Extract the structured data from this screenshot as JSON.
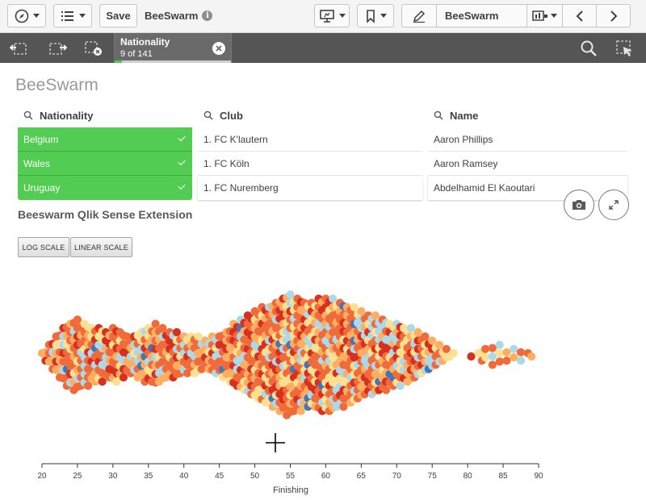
{
  "toolbar": {
    "save_label": "Save",
    "app_title": "BeeSwarm",
    "sheet_name": "BeeSwarm",
    "icons": [
      "compass-icon",
      "list-icon",
      "info-icon",
      "presentation-icon",
      "bookmark-icon",
      "pencil-icon",
      "sheet-list-icon",
      "chevron-left-icon",
      "chevron-right-icon"
    ]
  },
  "selections": {
    "field": "Nationality",
    "count_text": "9 of 141",
    "selected_fraction": 0.064,
    "icons": [
      "selection-back-icon",
      "selection-forward-icon",
      "clear-selections-icon",
      "search-icon",
      "selection-tool-icon"
    ]
  },
  "sheet": {
    "title": "BeeSwarm",
    "filters": [
      {
        "label": "Nationality",
        "items": [
          {
            "text": "Belgium",
            "selected": true
          },
          {
            "text": "Wales",
            "selected": true
          },
          {
            "text": "Uruguay",
            "selected": true
          }
        ]
      },
      {
        "label": "Club",
        "items": [
          {
            "text": "1. FC K'lautern",
            "selected": false
          },
          {
            "text": "1. FC Köln",
            "selected": false
          },
          {
            "text": "1. FC Nuremberg",
            "selected": false
          }
        ]
      },
      {
        "label": "Name",
        "items": [
          {
            "text": "Aaron Phillips",
            "selected": false
          },
          {
            "text": "Aaron Ramsey",
            "selected": false
          },
          {
            "text": "Abdelhamid El Kaoutari",
            "selected": false
          }
        ]
      }
    ],
    "chart_title": "Beeswarm Qlik Sense Extension",
    "log_scale_label": "LOG SCALE",
    "linear_scale_label": "LINEAR SCALE"
  },
  "colors": {
    "selected_green": "#52cc52",
    "toolbar_bg": "#f4f4f4",
    "selbar_bg": "#555555",
    "palette": [
      "#d7301f",
      "#f06a3a",
      "#fdae61",
      "#fee090",
      "#abd9e9",
      "#4575b4"
    ]
  },
  "chart_data": {
    "type": "scatter",
    "xlabel": "Finishing",
    "xlim": [
      20,
      90
    ],
    "ticks": [
      20,
      25,
      30,
      35,
      40,
      45,
      50,
      55,
      60,
      65,
      70,
      75,
      80,
      85,
      90
    ],
    "columns": [
      {
        "x": 20.0,
        "n": 1
      },
      {
        "x": 20.5,
        "n": 2
      },
      {
        "x": 21.0,
        "n": 3
      },
      {
        "x": 21.5,
        "n": 4
      },
      {
        "x": 22.0,
        "n": 5
      },
      {
        "x": 22.5,
        "n": 6
      },
      {
        "x": 23.0,
        "n": 7
      },
      {
        "x": 23.5,
        "n": 8
      },
      {
        "x": 24.0,
        "n": 8
      },
      {
        "x": 24.5,
        "n": 9
      },
      {
        "x": 25.0,
        "n": 9
      },
      {
        "x": 25.5,
        "n": 8
      },
      {
        "x": 26.0,
        "n": 8
      },
      {
        "x": 26.5,
        "n": 8
      },
      {
        "x": 27.0,
        "n": 7
      },
      {
        "x": 27.5,
        "n": 7
      },
      {
        "x": 28.0,
        "n": 7
      },
      {
        "x": 28.5,
        "n": 7
      },
      {
        "x": 29.0,
        "n": 6
      },
      {
        "x": 29.5,
        "n": 6
      },
      {
        "x": 30.0,
        "n": 7
      },
      {
        "x": 30.5,
        "n": 7
      },
      {
        "x": 31.0,
        "n": 6
      },
      {
        "x": 31.5,
        "n": 6
      },
      {
        "x": 32.0,
        "n": 5
      },
      {
        "x": 32.5,
        "n": 5
      },
      {
        "x": 33.0,
        "n": 5
      },
      {
        "x": 33.5,
        "n": 6
      },
      {
        "x": 34.0,
        "n": 6
      },
      {
        "x": 34.5,
        "n": 7
      },
      {
        "x": 35.0,
        "n": 7
      },
      {
        "x": 35.5,
        "n": 7
      },
      {
        "x": 36.0,
        "n": 8
      },
      {
        "x": 36.5,
        "n": 7
      },
      {
        "x": 37.0,
        "n": 7
      },
      {
        "x": 37.5,
        "n": 6
      },
      {
        "x": 38.0,
        "n": 6
      },
      {
        "x": 38.5,
        "n": 6
      },
      {
        "x": 39.0,
        "n": 6
      },
      {
        "x": 39.5,
        "n": 5
      },
      {
        "x": 40.0,
        "n": 5
      },
      {
        "x": 40.5,
        "n": 5
      },
      {
        "x": 41.0,
        "n": 5
      },
      {
        "x": 41.5,
        "n": 5
      },
      {
        "x": 42.0,
        "n": 5
      },
      {
        "x": 42.5,
        "n": 4
      },
      {
        "x": 43.0,
        "n": 4
      },
      {
        "x": 43.5,
        "n": 4
      },
      {
        "x": 44.0,
        "n": 5
      },
      {
        "x": 44.5,
        "n": 5
      },
      {
        "x": 45.0,
        "n": 5
      },
      {
        "x": 45.5,
        "n": 6
      },
      {
        "x": 46.0,
        "n": 6
      },
      {
        "x": 46.5,
        "n": 7
      },
      {
        "x": 47.0,
        "n": 8
      },
      {
        "x": 47.5,
        "n": 8
      },
      {
        "x": 48.0,
        "n": 9
      },
      {
        "x": 48.5,
        "n": 9
      },
      {
        "x": 49.0,
        "n": 10
      },
      {
        "x": 49.5,
        "n": 10
      },
      {
        "x": 50.0,
        "n": 11
      },
      {
        "x": 50.5,
        "n": 11
      },
      {
        "x": 51.0,
        "n": 12
      },
      {
        "x": 51.5,
        "n": 12
      },
      {
        "x": 52.0,
        "n": 12
      },
      {
        "x": 52.5,
        "n": 13
      },
      {
        "x": 53.0,
        "n": 13
      },
      {
        "x": 53.5,
        "n": 14
      },
      {
        "x": 54.0,
        "n": 14
      },
      {
        "x": 54.5,
        "n": 15
      },
      {
        "x": 55.0,
        "n": 15
      },
      {
        "x": 55.5,
        "n": 14
      },
      {
        "x": 56.0,
        "n": 14
      },
      {
        "x": 56.5,
        "n": 14
      },
      {
        "x": 57.0,
        "n": 13
      },
      {
        "x": 57.5,
        "n": 13
      },
      {
        "x": 58.0,
        "n": 13
      },
      {
        "x": 58.5,
        "n": 13
      },
      {
        "x": 59.0,
        "n": 14
      },
      {
        "x": 59.5,
        "n": 14
      },
      {
        "x": 60.0,
        "n": 14
      },
      {
        "x": 60.5,
        "n": 14
      },
      {
        "x": 61.0,
        "n": 14
      },
      {
        "x": 61.5,
        "n": 13
      },
      {
        "x": 62.0,
        "n": 13
      },
      {
        "x": 62.5,
        "n": 13
      },
      {
        "x": 63.0,
        "n": 12
      },
      {
        "x": 63.5,
        "n": 12
      },
      {
        "x": 64.0,
        "n": 12
      },
      {
        "x": 64.5,
        "n": 11
      },
      {
        "x": 65.0,
        "n": 11
      },
      {
        "x": 65.5,
        "n": 10
      },
      {
        "x": 66.0,
        "n": 10
      },
      {
        "x": 66.5,
        "n": 10
      },
      {
        "x": 67.0,
        "n": 10
      },
      {
        "x": 67.5,
        "n": 9
      },
      {
        "x": 68.0,
        "n": 9
      },
      {
        "x": 68.5,
        "n": 9
      },
      {
        "x": 69.0,
        "n": 8
      },
      {
        "x": 69.5,
        "n": 8
      },
      {
        "x": 70.0,
        "n": 8
      },
      {
        "x": 70.5,
        "n": 8
      },
      {
        "x": 71.0,
        "n": 7
      },
      {
        "x": 71.5,
        "n": 7
      },
      {
        "x": 72.0,
        "n": 7
      },
      {
        "x": 72.5,
        "n": 6
      },
      {
        "x": 73.0,
        "n": 6
      },
      {
        "x": 73.5,
        "n": 5
      },
      {
        "x": 74.0,
        "n": 5
      },
      {
        "x": 74.5,
        "n": 4
      },
      {
        "x": 75.0,
        "n": 4
      },
      {
        "x": 75.5,
        "n": 3
      },
      {
        "x": 76.0,
        "n": 3
      },
      {
        "x": 76.5,
        "n": 2
      },
      {
        "x": 77.0,
        "n": 2
      },
      {
        "x": 77.5,
        "n": 1
      },
      {
        "x": 78.0,
        "n": 1
      },
      {
        "x": 80.5,
        "n": 1
      },
      {
        "x": 81.5,
        "n": 1
      },
      {
        "x": 82.0,
        "n": 2
      },
      {
        "x": 82.5,
        "n": 2
      },
      {
        "x": 83.5,
        "n": 3
      },
      {
        "x": 84.5,
        "n": 3
      },
      {
        "x": 85.5,
        "n": 2
      },
      {
        "x": 86.5,
        "n": 2
      },
      {
        "x": 87.5,
        "n": 2
      },
      {
        "x": 88.5,
        "n": 1
      },
      {
        "x": 89.0,
        "n": 1
      }
    ]
  }
}
